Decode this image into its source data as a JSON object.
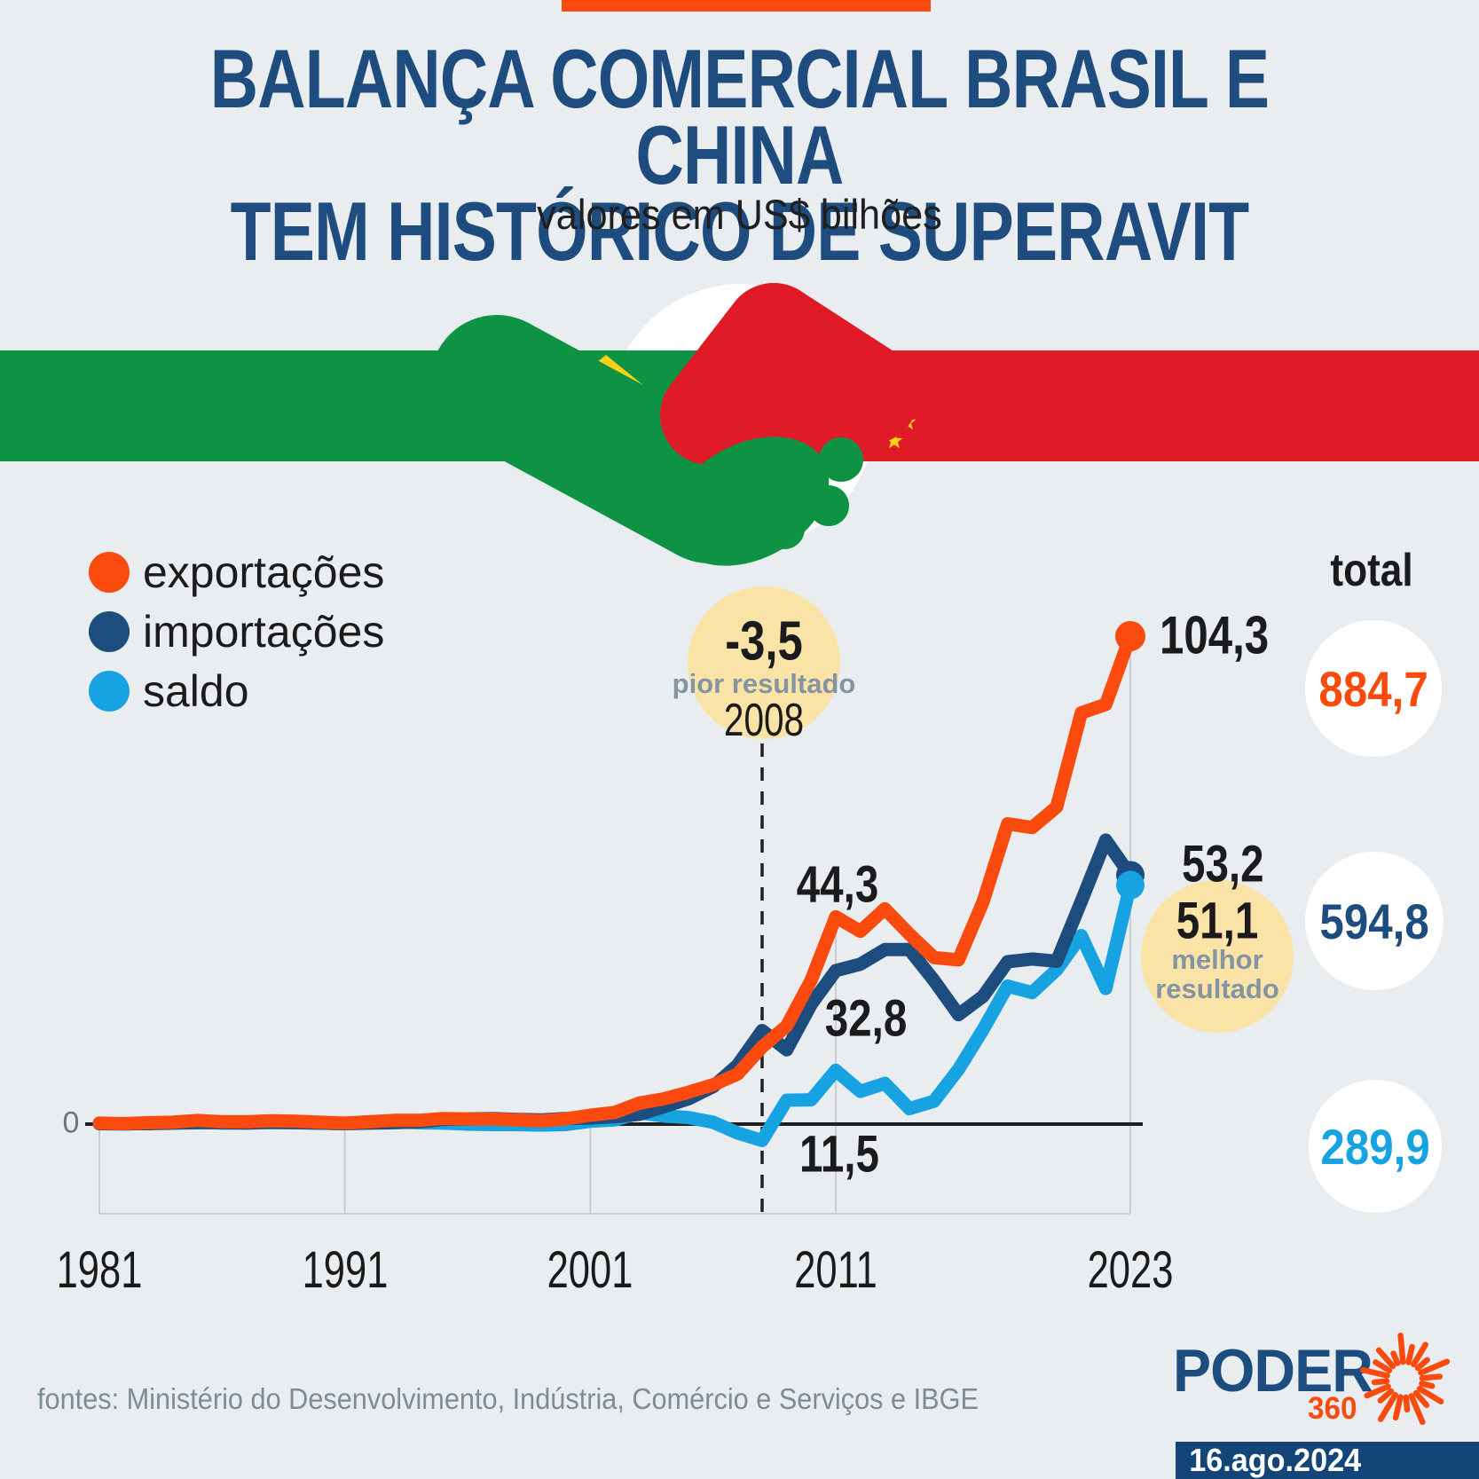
{
  "header": {
    "title_line1": "BALANÇA COMERCIAL BRASIL E CHINA",
    "title_line2": "TEM HISTÓRICO DE SUPERAVIT",
    "subtitle": "valores em US$ bilhões"
  },
  "legend": {
    "items": [
      {
        "label": "exportações",
        "color": "#fb4a0d"
      },
      {
        "label": "importações",
        "color": "#1d4d7f"
      },
      {
        "label": "saldo",
        "color": "#17a3e1"
      }
    ]
  },
  "annotations": {
    "worst": {
      "value": "-3,5",
      "caption": "pior resultado",
      "year": "2008"
    },
    "best": {
      "value": "51,1",
      "caption_line1": "melhor",
      "caption_line2": "resultado"
    },
    "exp_2011": "44,3",
    "imp_2011": "32,8",
    "saldo_2011": "11,5",
    "exp_2023": "104,3",
    "imp_2023": "53,2"
  },
  "totals": {
    "title": "total",
    "exportacoes": "884,7",
    "importacoes": "594,8",
    "saldo": "289,9"
  },
  "axis": {
    "zero_label": "0"
  },
  "footer": {
    "sources": "fontes: Ministério do Desenvolvimento, Indústria, Comércio e Serviços e IBGE"
  },
  "branding": {
    "logo_text": "PODER",
    "logo_360": "360",
    "date": "16.ago.2024"
  },
  "flags": {
    "brazil_green": "#0e9345",
    "flag_yellow": "#fcd116",
    "china_red": "#e11a28",
    "globe_blue": "#36a7e3"
  },
  "chart_data": {
    "type": "line",
    "title": "Balança comercial Brasil e China",
    "unit": "US$ bilhões",
    "x": [
      1981,
      1982,
      1983,
      1984,
      1985,
      1986,
      1987,
      1988,
      1989,
      1990,
      1991,
      1992,
      1993,
      1994,
      1995,
      1996,
      1997,
      1998,
      1999,
      2000,
      2001,
      2002,
      2003,
      2004,
      2005,
      2006,
      2007,
      2008,
      2009,
      2010,
      2011,
      2012,
      2013,
      2014,
      2015,
      2016,
      2017,
      2018,
      2019,
      2020,
      2021,
      2022,
      2023
    ],
    "x_ticks": [
      1981,
      1991,
      2001,
      2011,
      2023
    ],
    "ylim": [
      -20,
      115
    ],
    "zero_line": 0,
    "highlight_year": 2008,
    "grid": true,
    "legend_position": "top-left",
    "series": [
      {
        "name": "exportações",
        "color": "#fb4a0d",
        "total": 884.7,
        "values": [
          0.2,
          0.1,
          0.3,
          0.4,
          0.8,
          0.5,
          0.5,
          0.7,
          0.6,
          0.4,
          0.2,
          0.5,
          0.8,
          0.8,
          1.2,
          1.1,
          1.1,
          0.9,
          0.7,
          1.1,
          1.9,
          2.5,
          4.5,
          5.4,
          6.8,
          8.4,
          10.7,
          16.5,
          21.0,
          30.8,
          44.3,
          41.2,
          46.0,
          40.6,
          35.6,
          35.1,
          47.5,
          64.2,
          63.4,
          67.8,
          87.9,
          89.7,
          104.3
        ]
      },
      {
        "name": "importações",
        "color": "#1d4d7f",
        "total": 594.8,
        "values": [
          0.1,
          0.1,
          0.1,
          0.2,
          0.3,
          0.3,
          0.2,
          0.4,
          0.3,
          0.2,
          0.1,
          0.2,
          0.3,
          0.5,
          1.0,
          1.1,
          1.2,
          1.0,
          0.9,
          1.2,
          1.3,
          1.6,
          2.1,
          3.7,
          5.4,
          8.0,
          12.6,
          20.0,
          15.9,
          25.6,
          32.8,
          34.2,
          37.3,
          37.3,
          30.7,
          23.4,
          27.3,
          34.7,
          35.3,
          34.8,
          47.6,
          60.7,
          53.2
        ]
      },
      {
        "name": "saldo",
        "color": "#17a3e1",
        "total": 289.9,
        "values": [
          0.1,
          0.0,
          0.2,
          0.2,
          0.5,
          0.2,
          0.3,
          0.3,
          0.3,
          0.2,
          0.1,
          0.3,
          0.5,
          0.3,
          0.2,
          0.0,
          -0.1,
          -0.1,
          -0.2,
          -0.1,
          0.6,
          0.9,
          2.4,
          1.7,
          1.4,
          0.4,
          -1.9,
          -3.5,
          5.1,
          5.2,
          11.5,
          7.0,
          8.7,
          3.3,
          4.9,
          11.7,
          20.2,
          29.5,
          28.1,
          33.0,
          40.3,
          29.0,
          51.1
        ]
      }
    ]
  }
}
